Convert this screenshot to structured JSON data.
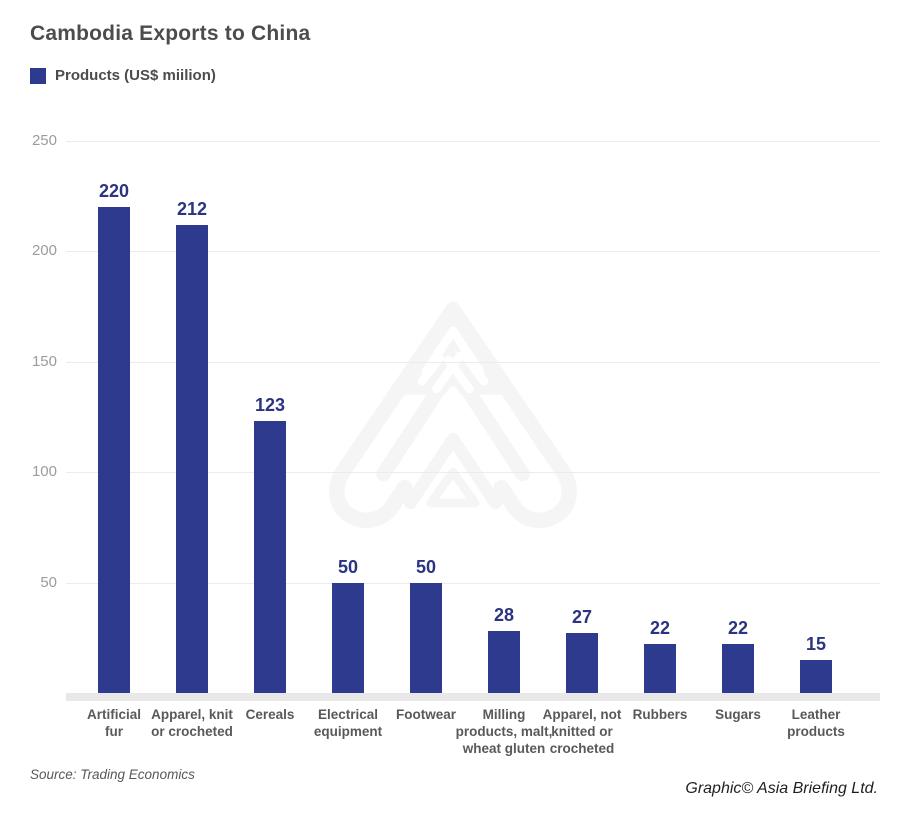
{
  "header": {
    "title": "Cambodia Exports to China",
    "legend_label": "Products (US$ miilion)"
  },
  "chart_data": {
    "type": "bar",
    "title": "Cambodia Exports to China",
    "legend": "Products (US$ miilion)",
    "legend_position": "top-left",
    "categories": [
      "Artificial fur",
      "Apparel, knit or crocheted",
      "Cereals",
      "Electrical equipment",
      "Footwear",
      "Milling products, malt, wheat gluten",
      "Apparel, not knitted or crocheted",
      "Rubbers",
      "Sugars",
      "Leather products"
    ],
    "category_lines": [
      [
        "Artificial",
        "fur"
      ],
      [
        "Apparel, knit",
        "or crocheted"
      ],
      [
        "Cereals"
      ],
      [
        "Electrical",
        "equipment"
      ],
      [
        "Footwear"
      ],
      [
        "Milling",
        "products, malt,",
        "wheat gluten"
      ],
      [
        "Apparel, not",
        "knitted or",
        "crocheted"
      ],
      [
        "Rubbers"
      ],
      [
        "Sugars"
      ],
      [
        "Leather",
        "products"
      ]
    ],
    "values": [
      220,
      212,
      123,
      50,
      50,
      28,
      27,
      22,
      22,
      15
    ],
    "xlabel": "",
    "ylabel": "",
    "ylim": [
      0,
      250
    ],
    "yticks": [
      250,
      200,
      150,
      100,
      50
    ],
    "grid": true
  },
  "colors": {
    "bar": "#2d3a8d",
    "value_label": "#2a3480",
    "title_text": "#4c4c4e",
    "category_label": "#58595b",
    "tick_label": "#9c9c9c",
    "gridline": "#ececec",
    "axis_band": "#e8e8e8",
    "watermark": "#f5f5f5",
    "source_text": "#58585a",
    "credit_text": "#1f1f1f"
  },
  "watermark": {
    "name": "asia-briefing-logo-watermark"
  },
  "footer": {
    "source": "Source: Trading Economics",
    "credit": "Graphic© Asia Briefing Ltd."
  }
}
